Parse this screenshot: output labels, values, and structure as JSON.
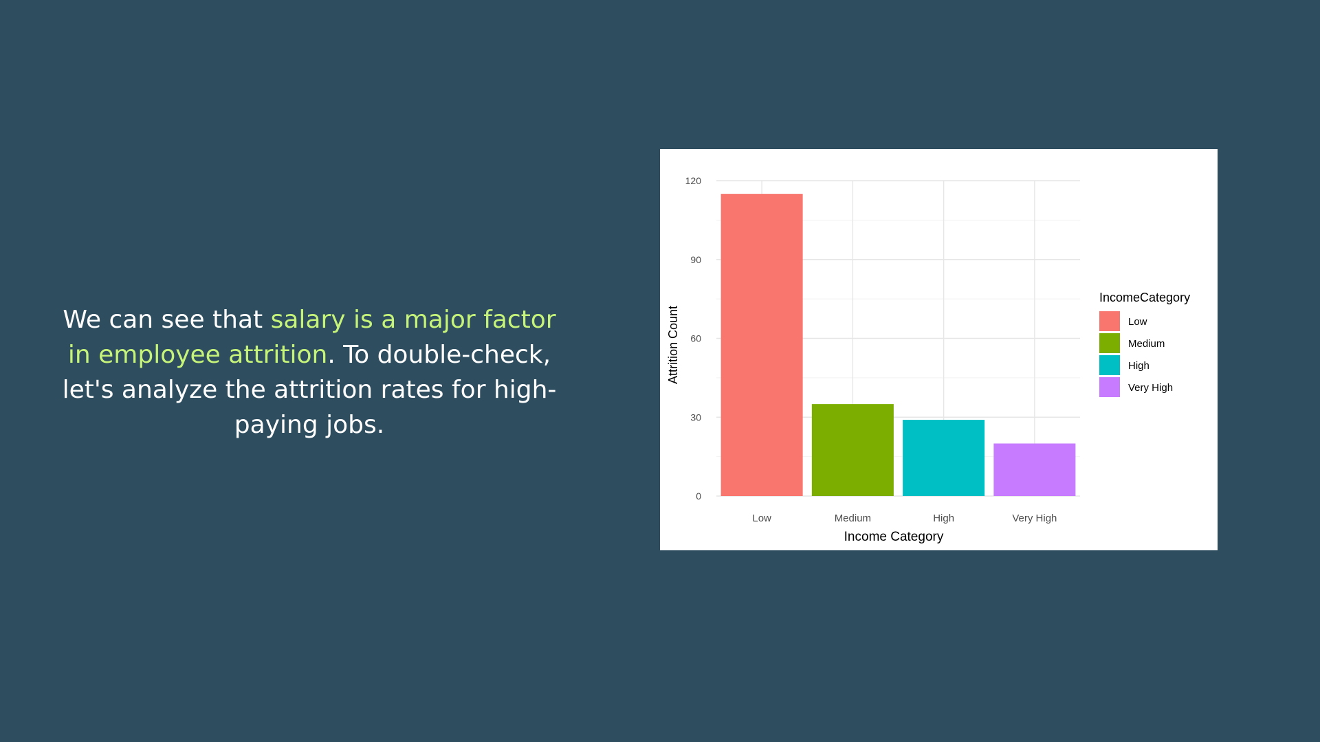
{
  "caption": {
    "prefix": "We can see that ",
    "highlight": "salary is a major factor in employee attrition",
    "suffix": ". To double-check, let's analyze the attrition rates for high-paying jobs."
  },
  "colors": {
    "background": "#2e4d5f",
    "highlight": "#c6f47a",
    "text": "#ffffff"
  },
  "chart_data": {
    "type": "bar",
    "categories": [
      "Low",
      "Medium",
      "High",
      "Very High"
    ],
    "values": [
      115,
      35,
      29,
      20
    ],
    "colors": [
      "#f8766d",
      "#7cae00",
      "#00bfc4",
      "#c77cff"
    ],
    "xlabel": "Income Category",
    "ylabel": "Attrition Count",
    "ylim": [
      0,
      120
    ],
    "yticks": [
      0,
      30,
      60,
      90,
      120
    ],
    "grid": true,
    "legend": {
      "title": "IncomeCategory",
      "position": "right",
      "entries": [
        "Low",
        "Medium",
        "High",
        "Very High"
      ]
    }
  }
}
